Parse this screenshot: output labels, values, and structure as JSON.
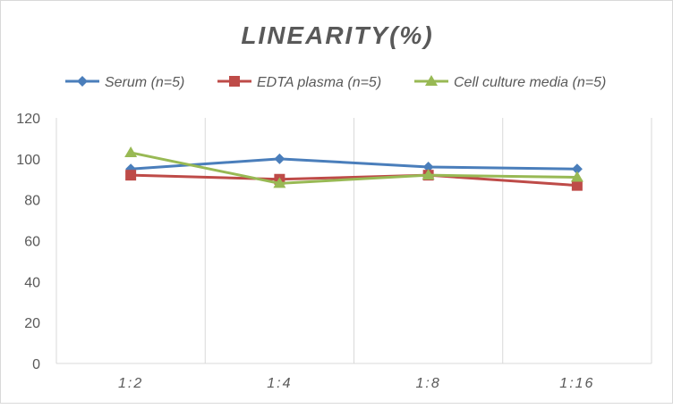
{
  "chart_data": {
    "type": "line",
    "title": "LINEARITY(%)",
    "xlabel": "",
    "ylabel": "",
    "categories": [
      "1:2",
      "1:4",
      "1:8",
      "1:16"
    ],
    "ylim": [
      0,
      120
    ],
    "yticks": [
      0,
      20,
      40,
      60,
      80,
      100,
      120
    ],
    "grid": "vertical",
    "legend": "top",
    "series": [
      {
        "name": "Serum (n=5)",
        "values": [
          95,
          100,
          96,
          95
        ],
        "color": "#4a7ebb",
        "marker": "diamond"
      },
      {
        "name": "EDTA plasma (n=5)",
        "values": [
          92,
          90,
          92,
          87
        ],
        "color": "#be4b48",
        "marker": "square"
      },
      {
        "name": "Cell culture media (n=5)",
        "values": [
          103,
          88,
          92,
          91
        ],
        "color": "#98b954",
        "marker": "triangle"
      }
    ]
  }
}
